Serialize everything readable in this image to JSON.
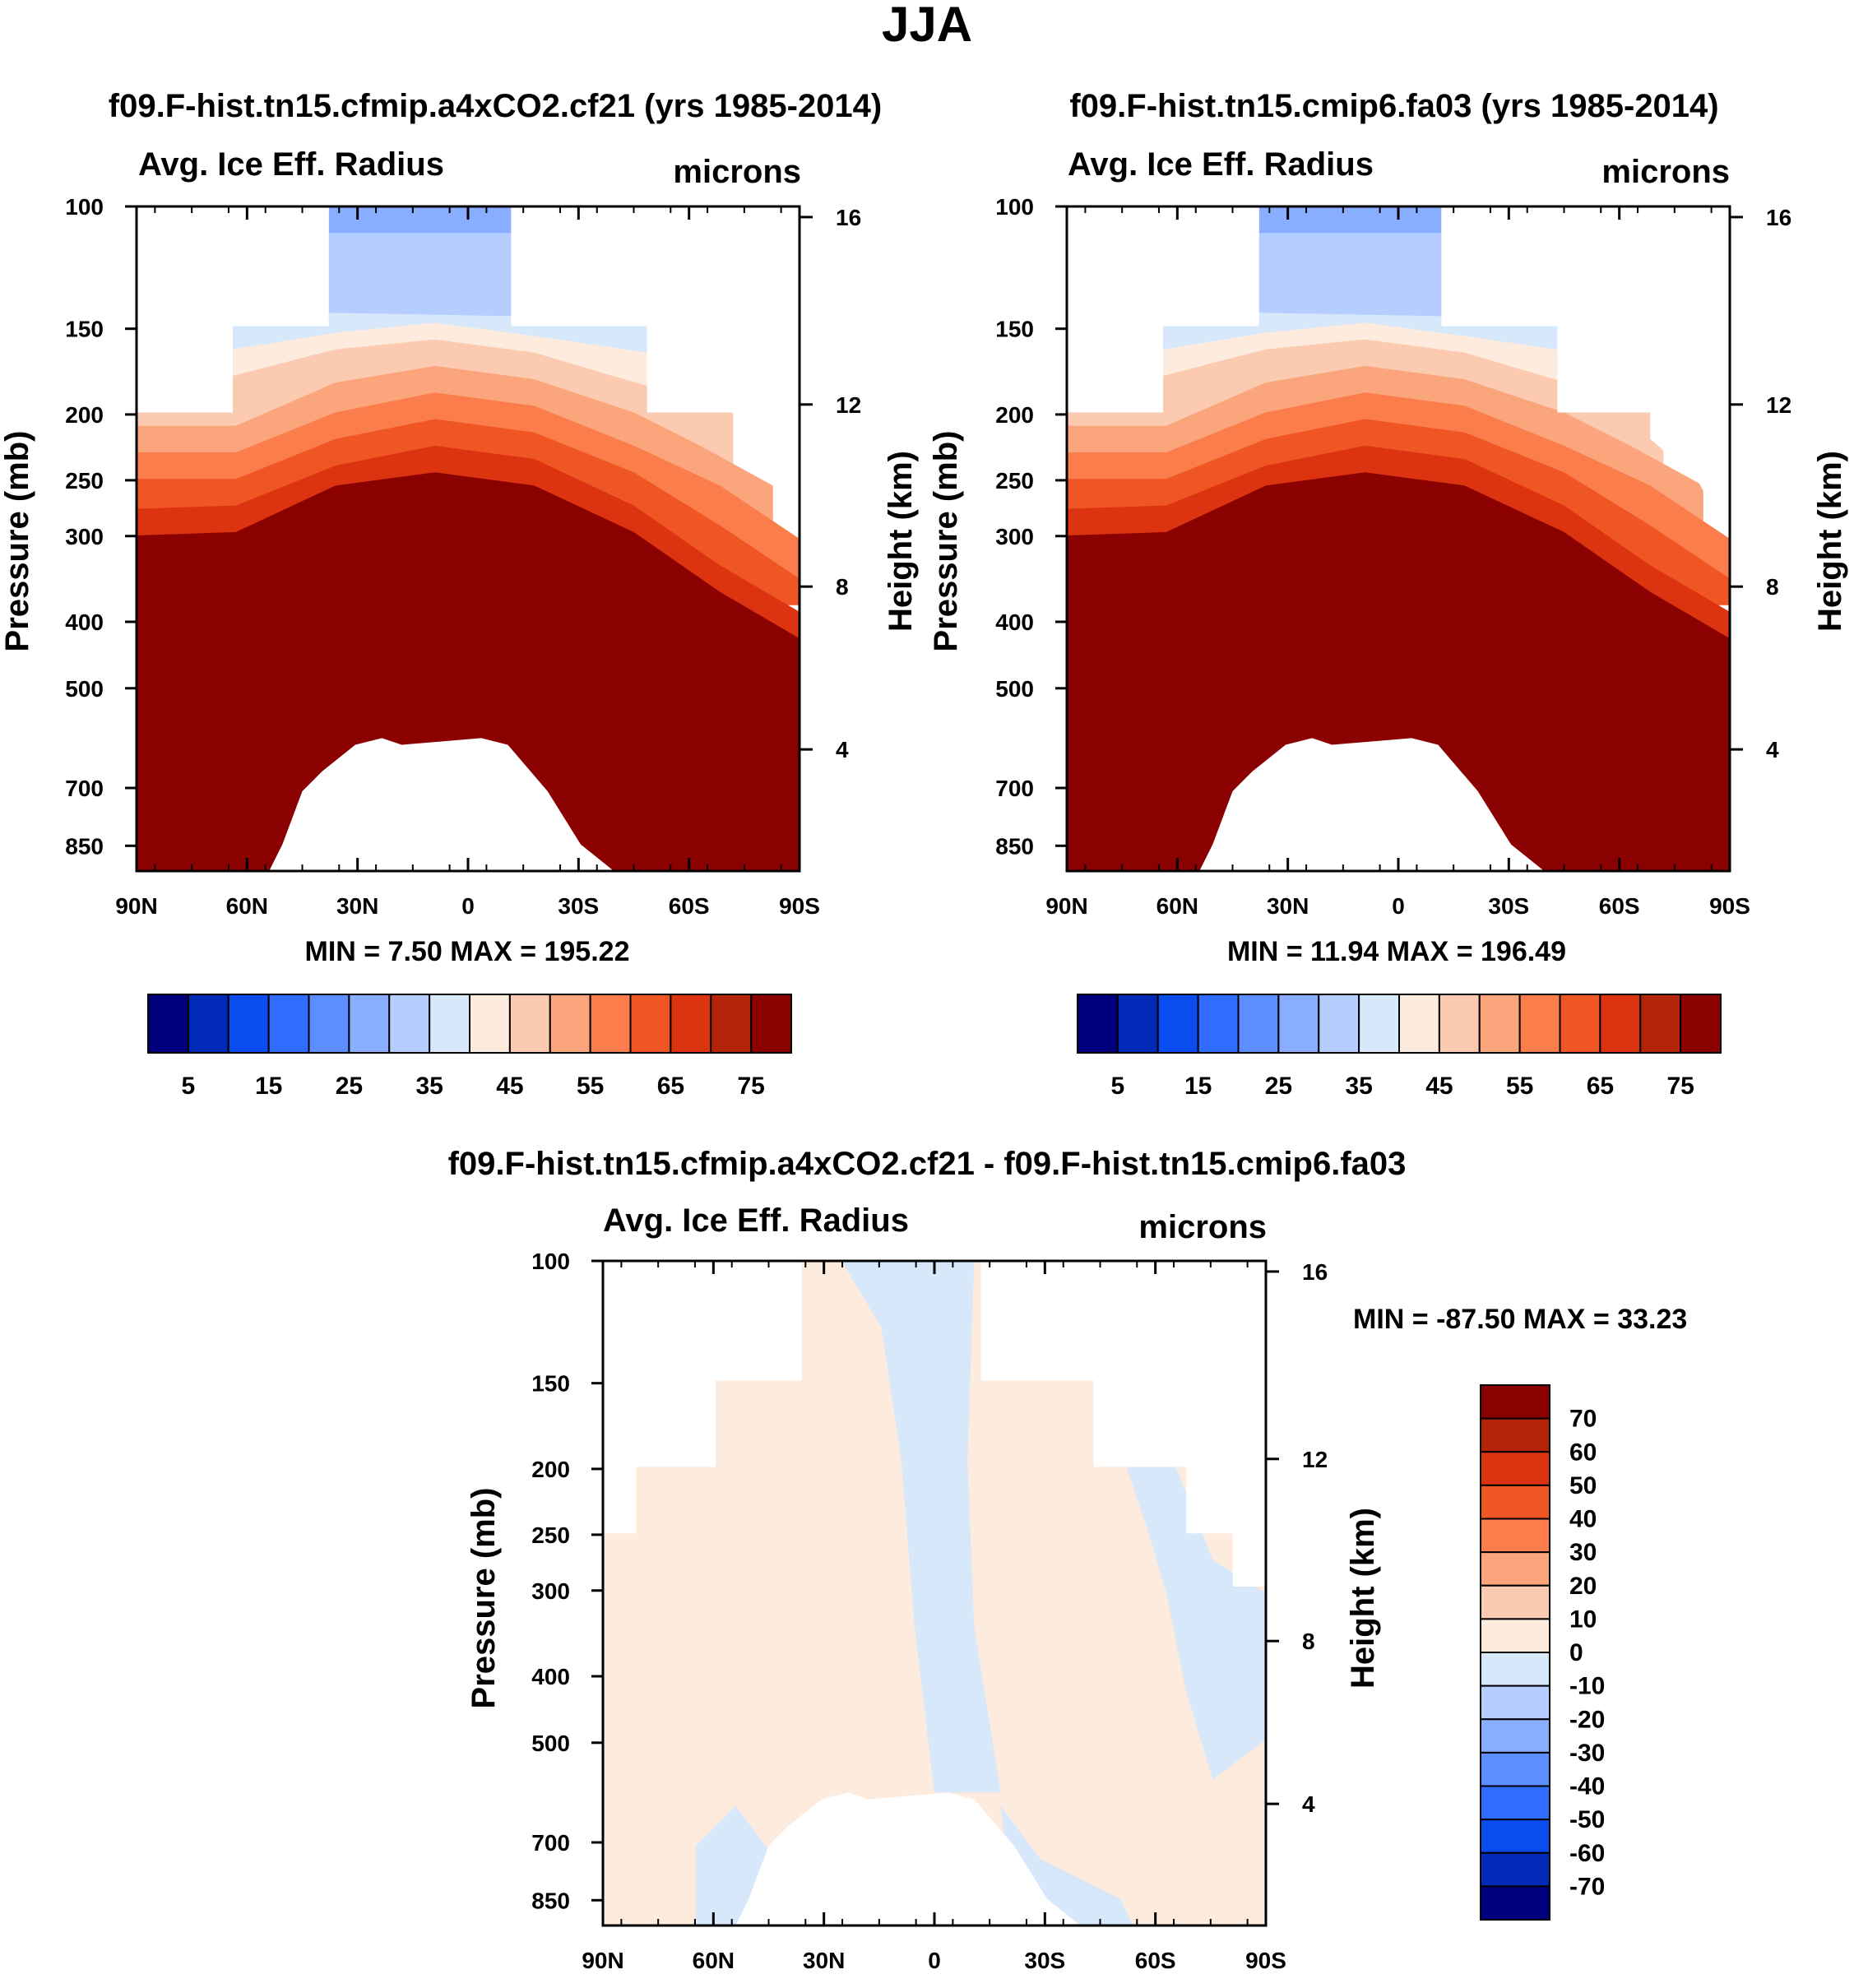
{
  "figure": {
    "title": "JJA"
  },
  "chart_data": [
    {
      "type": "heatmap",
      "title": "f09.F-hist.tn15.cfmip.a4xCO2.cf21 (yrs 1985-2014)",
      "field": "Avg. Ice Eff. Radius",
      "units": "microns",
      "ylabel": "Pressure (mb)",
      "ylabel_right": "Height (km)",
      "x_ticks": [
        "90N",
        "60N",
        "30N",
        "0",
        "30S",
        "60S",
        "90S"
      ],
      "y_ticks": [
        "100",
        "150",
        "200",
        "250",
        "300",
        "400",
        "500",
        "700",
        "850"
      ],
      "height_ticks": [
        "16",
        "12",
        "8",
        "4"
      ],
      "min_max_label": "MIN =   7.50   MAX = 195.22",
      "min": 7.5,
      "max": 195.22,
      "colorbar_labels": [
        "5",
        "15",
        "25",
        "35",
        "45",
        "55",
        "65",
        "75"
      ]
    },
    {
      "type": "heatmap",
      "title": "f09.F-hist.tn15.cmip6.fa03 (yrs 1985-2014)",
      "field": "Avg. Ice Eff. Radius",
      "units": "microns",
      "ylabel": "Pressure (mb)",
      "ylabel_right": "Height (km)",
      "x_ticks": [
        "90N",
        "60N",
        "30N",
        "0",
        "30S",
        "60S",
        "90S"
      ],
      "y_ticks": [
        "100",
        "150",
        "200",
        "250",
        "300",
        "400",
        "500",
        "700",
        "850"
      ],
      "height_ticks": [
        "16",
        "12",
        "8",
        "4"
      ],
      "min_max_label": "MIN =  11.94   MAX = 196.49",
      "min": 11.94,
      "max": 196.49,
      "colorbar_labels": [
        "5",
        "15",
        "25",
        "35",
        "45",
        "55",
        "65",
        "75"
      ]
    },
    {
      "type": "heatmap",
      "title": "f09.F-hist.tn15.cfmip.a4xCO2.cf21 - f09.F-hist.tn15.cmip6.fa03",
      "field": "Avg. Ice Eff. Radius",
      "units": "microns",
      "ylabel": "Pressure (mb)",
      "ylabel_right": "Height (km)",
      "x_ticks": [
        "90N",
        "60N",
        "30N",
        "0",
        "30S",
        "60S",
        "90S"
      ],
      "y_ticks": [
        "100",
        "150",
        "200",
        "250",
        "300",
        "400",
        "500",
        "700",
        "850"
      ],
      "height_ticks": [
        "16",
        "12",
        "8",
        "4"
      ],
      "min_max_label": "MIN = -87.50   MAX =  33.23",
      "min": -87.5,
      "max": 33.23,
      "colorbar_labels": [
        "70",
        "60",
        "50",
        "40",
        "30",
        "20",
        "10",
        "0",
        "-10",
        "-20",
        "-30",
        "-40",
        "-50",
        "-60",
        "-70"
      ]
    }
  ],
  "colors": {
    "scale": [
      "#00007f",
      "#0029b8",
      "#0a4cf0",
      "#2f6cff",
      "#5c8eff",
      "#8aaeff",
      "#b6ceff",
      "#d8e8fb",
      "#fdebdd",
      "#fccab0",
      "#fba57c",
      "#fa7d4b",
      "#f05524",
      "#dc3410",
      "#b42409",
      "#8b0000"
    ],
    "diff_pos": "#fdebdd",
    "diff_neg": "#d8e8fb"
  }
}
